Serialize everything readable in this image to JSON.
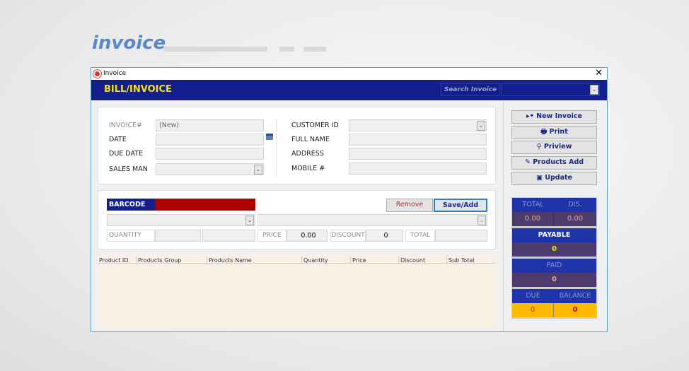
{
  "brand": "invoice",
  "window": {
    "title": "Invoice",
    "close": "✕"
  },
  "header": {
    "title": "BILL/INVOICE",
    "search_label": "Search Invoice",
    "search_value": ""
  },
  "invoice": {
    "invoice_no_label": "INVOICE#",
    "invoice_no": "(New)",
    "date_label": "DATE",
    "due_date_label": "DUE DATE",
    "sales_man_label": "SALES MAN",
    "customer_id_label": "CUSTOMER ID",
    "full_name_label": "FULL NAME",
    "address_label": "ADDRESS",
    "mobile_label": "MOBILE #"
  },
  "entry": {
    "barcode_label": "BARCODE",
    "remove": "Remove",
    "save_add": "Save/Add",
    "quantity_label": "QUANTITY",
    "price_label": "PRICE",
    "price": "0.00",
    "discount_label": "DISCOUNT",
    "discount": "0",
    "total_label": "TOTAL"
  },
  "grid": {
    "columns": [
      "Product ID",
      "Products Group",
      "Products Name",
      "Quantity",
      "Price",
      "Discount",
      "Sub Total"
    ]
  },
  "actions": [
    {
      "label": "New Invoice",
      "icon": "▸•"
    },
    {
      "label": "Print",
      "icon": "🖶"
    },
    {
      "label": "Priview",
      "icon": "⚲"
    },
    {
      "label": "Products Add",
      "icon": "✎"
    },
    {
      "label": "Update",
      "icon": "▣"
    }
  ],
  "summary": {
    "total_label": "TOTAL",
    "total": "0.00",
    "dis_label": "DIS.",
    "dis": "0.00",
    "payable_label": "PAYABLE",
    "payable": "0",
    "paid_label": "PAID",
    "paid": "0",
    "due_label": "DUE",
    "due": "0",
    "balance_label": "BALANCE",
    "balance": "0"
  },
  "colors": {
    "header": "#141e8c",
    "title": "#f5e500",
    "barcode_field": "#b00000",
    "due_bg": "#ffb900"
  }
}
